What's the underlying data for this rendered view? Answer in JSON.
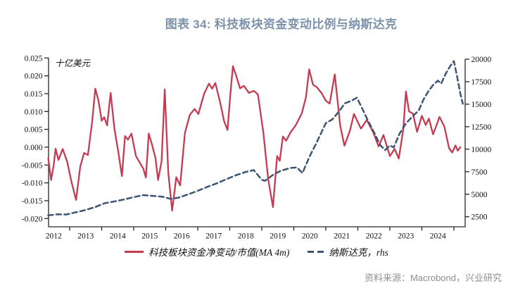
{
  "page": {
    "title": "图表 34: 科技板块资金变动比例与纳斯达克",
    "source": "资料来源：Macrobond，兴业研究"
  },
  "colors": {
    "title": "#7C93AB",
    "tech_flow_line": "#C43B52",
    "nasdaq_line": "#3D5473",
    "axis": "#262626",
    "source_text": "#8F8F8F"
  },
  "chart_data": {
    "type": "line",
    "title": "图表 34: 科技板块资金变动比例与纳斯达克",
    "legend_position": "bottom",
    "grid": false,
    "x_axis": {
      "start_year": 2012,
      "end_year": 2025,
      "year_labels": [
        "2012",
        "2013",
        "2014",
        "2015",
        "2016",
        "2017",
        "2018",
        "2019",
        "2020",
        "2021",
        "2022",
        "2023",
        "2024"
      ]
    },
    "left_axis": {
      "label": "十亿美元",
      "min": -0.02,
      "max": 0.025,
      "tick_step": 0.005,
      "ticks": [
        0.025,
        0.02,
        0.015,
        0.01,
        0.005,
        0.0,
        -0.005,
        -0.01,
        -0.015,
        -0.02
      ]
    },
    "right_axis": {
      "min": 2500,
      "max": 20000,
      "tick_step": 2500,
      "ticks": [
        20000,
        17500,
        15000,
        12500,
        10000,
        7500,
        5000,
        2500
      ]
    },
    "series": [
      {
        "name": "科技板块资金净变动/市值(MA 4m)",
        "axis": "left",
        "color": "#C43B52",
        "line_style": "solid",
        "points": [
          [
            2012.33,
            -0.003
          ],
          [
            2012.42,
            -0.0092
          ],
          [
            2012.5,
            -0.005
          ],
          [
            2012.56,
            -0.0004
          ],
          [
            2012.65,
            -0.0036
          ],
          [
            2012.78,
            -0.0005
          ],
          [
            2012.92,
            -0.004
          ],
          [
            2013.05,
            -0.0095
          ],
          [
            2013.2,
            -0.0148
          ],
          [
            2013.33,
            -0.0055
          ],
          [
            2013.45,
            -0.0016
          ],
          [
            2013.57,
            -0.0022
          ],
          [
            2013.7,
            0.007
          ],
          [
            2013.8,
            0.0164
          ],
          [
            2013.9,
            0.013
          ],
          [
            2014.0,
            0.0074
          ],
          [
            2014.08,
            0.0084
          ],
          [
            2014.17,
            0.0061
          ],
          [
            2014.28,
            0.0152
          ],
          [
            2014.4,
            0.005
          ],
          [
            2014.52,
            -0.0014
          ],
          [
            2014.63,
            -0.0081
          ],
          [
            2014.73,
            0.0031
          ],
          [
            2014.82,
            0.0021
          ],
          [
            2014.93,
            0.0038
          ],
          [
            2015.07,
            -0.0025
          ],
          [
            2015.18,
            -0.0042
          ],
          [
            2015.3,
            -0.006
          ],
          [
            2015.38,
            -0.0085
          ],
          [
            2015.47,
            0.0038
          ],
          [
            2015.57,
            0.0008
          ],
          [
            2015.68,
            -0.003
          ],
          [
            2015.76,
            -0.0092
          ],
          [
            2015.87,
            -0.004
          ],
          [
            2015.97,
            0.0162
          ],
          [
            2016.08,
            -0.007
          ],
          [
            2016.2,
            -0.0178
          ],
          [
            2016.33,
            -0.0084
          ],
          [
            2016.45,
            -0.0107
          ],
          [
            2016.6,
            0.004
          ],
          [
            2016.75,
            0.009
          ],
          [
            2016.9,
            0.0107
          ],
          [
            2017.02,
            0.0093
          ],
          [
            2017.2,
            0.015
          ],
          [
            2017.35,
            0.0178
          ],
          [
            2017.45,
            0.0164
          ],
          [
            2017.55,
            0.018
          ],
          [
            2017.7,
            0.0125
          ],
          [
            2017.82,
            0.0074
          ],
          [
            2017.93,
            0.0048
          ],
          [
            2018.02,
            0.015
          ],
          [
            2018.1,
            0.0227
          ],
          [
            2018.2,
            0.02
          ],
          [
            2018.32,
            0.0165
          ],
          [
            2018.44,
            0.0172
          ],
          [
            2018.6,
            0.0152
          ],
          [
            2018.75,
            0.0158
          ],
          [
            2018.88,
            0.0148
          ],
          [
            2019.05,
            0.004
          ],
          [
            2019.2,
            -0.009
          ],
          [
            2019.35,
            -0.0168
          ],
          [
            2019.48,
            -0.0025
          ],
          [
            2019.56,
            -0.0038
          ],
          [
            2019.66,
            0.003
          ],
          [
            2019.76,
            0.0018
          ],
          [
            2019.9,
            0.0042
          ],
          [
            2020.05,
            0.006
          ],
          [
            2020.25,
            0.0095
          ],
          [
            2020.38,
            0.014
          ],
          [
            2020.48,
            0.0218
          ],
          [
            2020.6,
            0.0175
          ],
          [
            2020.72,
            0.0168
          ],
          [
            2020.88,
            0.015
          ],
          [
            2021.0,
            0.013
          ],
          [
            2021.12,
            0.0122
          ],
          [
            2021.28,
            0.0204
          ],
          [
            2021.45,
            0.006
          ],
          [
            2021.58,
            0.0004
          ],
          [
            2021.75,
            0.0045
          ],
          [
            2021.88,
            0.0093
          ],
          [
            2022.0,
            0.007
          ],
          [
            2022.1,
            0.0052
          ],
          [
            2022.28,
            0.0076
          ],
          [
            2022.48,
            0.0042
          ],
          [
            2022.65,
            0.0002
          ],
          [
            2022.8,
            0.0034
          ],
          [
            2023.0,
            -0.0025
          ],
          [
            2023.15,
            -0.0005
          ],
          [
            2023.28,
            -0.0032
          ],
          [
            2023.42,
            0.005
          ],
          [
            2023.5,
            0.0156
          ],
          [
            2023.6,
            0.01
          ],
          [
            2023.72,
            0.0094
          ],
          [
            2023.85,
            0.0043
          ],
          [
            2024.0,
            0.0088
          ],
          [
            2024.12,
            0.0062
          ],
          [
            2024.22,
            0.008
          ],
          [
            2024.35,
            0.0036
          ],
          [
            2024.45,
            0.006
          ],
          [
            2024.55,
            0.0085
          ],
          [
            2024.7,
            0.0058
          ],
          [
            2024.85,
            -0.0003
          ],
          [
            2024.95,
            -0.0015
          ],
          [
            2025.05,
            0.0005
          ],
          [
            2025.12,
            -0.001
          ],
          [
            2025.2,
            0.0
          ]
        ]
      },
      {
        "name": "纳斯达克，rhs",
        "axis": "right",
        "color": "#3D5473",
        "line_style": "dashed",
        "points": [
          [
            2012.33,
            2650
          ],
          [
            2012.6,
            2770
          ],
          [
            2012.9,
            2750
          ],
          [
            2013.2,
            3000
          ],
          [
            2013.5,
            3250
          ],
          [
            2013.8,
            3580
          ],
          [
            2014.1,
            4000
          ],
          [
            2014.4,
            4200
          ],
          [
            2014.7,
            4420
          ],
          [
            2015.0,
            4680
          ],
          [
            2015.3,
            4900
          ],
          [
            2015.6,
            4820
          ],
          [
            2015.9,
            4720
          ],
          [
            2016.15,
            4480
          ],
          [
            2016.4,
            4620
          ],
          [
            2016.7,
            4980
          ],
          [
            2017.0,
            5380
          ],
          [
            2017.3,
            5820
          ],
          [
            2017.6,
            6220
          ],
          [
            2017.9,
            6680
          ],
          [
            2018.2,
            7120
          ],
          [
            2018.5,
            7480
          ],
          [
            2018.75,
            7680
          ],
          [
            2019.0,
            6600
          ],
          [
            2019.1,
            6480
          ],
          [
            2019.35,
            7150
          ],
          [
            2019.6,
            7620
          ],
          [
            2019.9,
            7920
          ],
          [
            2020.1,
            7980
          ],
          [
            2020.27,
            7350
          ],
          [
            2020.5,
            9250
          ],
          [
            2020.7,
            10650
          ],
          [
            2021.0,
            12900
          ],
          [
            2021.2,
            13300
          ],
          [
            2021.4,
            14150
          ],
          [
            2021.6,
            15100
          ],
          [
            2021.8,
            15380
          ],
          [
            2021.97,
            15720
          ],
          [
            2022.12,
            14650
          ],
          [
            2022.3,
            13300
          ],
          [
            2022.5,
            11900
          ],
          [
            2022.7,
            10450
          ],
          [
            2022.85,
            9900
          ],
          [
            2023.0,
            10420
          ],
          [
            2023.12,
            10200
          ],
          [
            2023.3,
            11700
          ],
          [
            2023.5,
            12850
          ],
          [
            2023.7,
            13620
          ],
          [
            2023.9,
            14300
          ],
          [
            2024.05,
            15520
          ],
          [
            2024.2,
            16420
          ],
          [
            2024.35,
            17120
          ],
          [
            2024.5,
            17620
          ],
          [
            2024.6,
            17280
          ],
          [
            2024.75,
            18420
          ],
          [
            2024.9,
            19320
          ],
          [
            2025.0,
            19780
          ],
          [
            2025.1,
            18100
          ],
          [
            2025.2,
            16200
          ],
          [
            2025.28,
            15050
          ]
        ]
      }
    ]
  }
}
